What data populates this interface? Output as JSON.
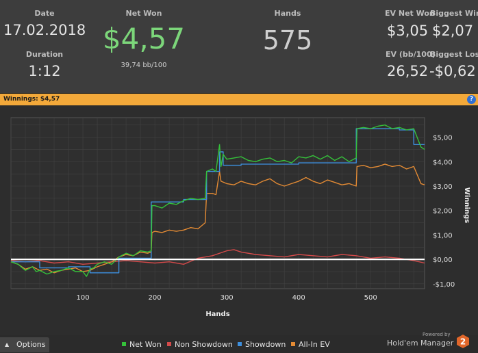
{
  "stats": {
    "date_label": "Date",
    "date_value": "17.02.2018",
    "duration_label": "Duration",
    "duration_value": "1:12",
    "net_won_label": "Net Won",
    "net_won_value": "$4,57",
    "net_won_bb": "39,74 bb/100",
    "hands_label": "Hands",
    "hands_value": "575",
    "ev_net_won_label": "EV Net Won",
    "ev_net_won_value": "$3,05",
    "biggest_win_label": "Biggest Win",
    "biggest_win_value": "$2,07",
    "ev_bb_label": "EV (bb/100)",
    "ev_bb_value": "26,52",
    "biggest_loss_label": "Biggest Loss",
    "biggest_loss_value": "-$0,62"
  },
  "banner": {
    "text": "Winnings:  $4,57",
    "help_icon": "?"
  },
  "colors": {
    "net_won": "#35c23a",
    "non_showdown": "#d44a4a",
    "showdown": "#3d8fde",
    "all_in_ev": "#e48b34",
    "accent_banner": "#f3a93a"
  },
  "chart_data": {
    "type": "line",
    "title": "Winnings:  $4,57",
    "xlabel": "Hands",
    "ylabel": "Winnings",
    "xlim": [
      0,
      575
    ],
    "ylim": [
      -1.2,
      5.8
    ],
    "x_ticks": [
      100,
      200,
      300,
      400,
      500
    ],
    "y_ticks": [
      5,
      4,
      3,
      2,
      1,
      0,
      -1
    ],
    "y_tick_labels": [
      "$5,00",
      "$4,00",
      "$3,00",
      "$2,00",
      "$1,00",
      "$0,00",
      "-$1,00"
    ],
    "series": [
      {
        "name": "Net Won",
        "color": "#35c23a",
        "x": [
          0,
          10,
          20,
          30,
          35,
          40,
          50,
          60,
          70,
          80,
          90,
          100,
          105,
          110,
          115,
          120,
          130,
          140,
          150,
          160,
          170,
          180,
          190,
          195,
          196,
          200,
          210,
          220,
          230,
          240,
          250,
          260,
          270,
          272,
          280,
          285,
          290,
          292,
          295,
          300,
          310,
          320,
          330,
          340,
          350,
          360,
          370,
          380,
          390,
          400,
          410,
          420,
          430,
          440,
          450,
          460,
          470,
          480,
          481,
          490,
          500,
          510,
          520,
          530,
          540,
          550,
          560,
          570,
          575
        ],
        "y": [
          -0.1,
          -0.2,
          -0.45,
          -0.3,
          -0.5,
          -0.45,
          -0.6,
          -0.5,
          -0.45,
          -0.35,
          -0.5,
          -0.5,
          -0.7,
          -0.4,
          -0.35,
          -0.2,
          -0.1,
          -0.2,
          0.1,
          0.25,
          0.15,
          0.35,
          0.3,
          0.35,
          2.2,
          2.2,
          2.1,
          2.3,
          2.25,
          2.4,
          2.5,
          2.45,
          2.5,
          3.6,
          3.7,
          3.6,
          4.7,
          3.8,
          4.3,
          4.1,
          4.15,
          4.2,
          4.05,
          4.0,
          4.1,
          4.15,
          4.0,
          4.05,
          3.95,
          4.2,
          4.15,
          4.25,
          4.1,
          4.25,
          4.05,
          4.2,
          4.0,
          4.15,
          5.35,
          5.4,
          5.35,
          5.45,
          5.5,
          5.35,
          5.4,
          5.3,
          5.35,
          4.6,
          4.5
        ]
      },
      {
        "name": "Non Showdown",
        "color": "#d44a4a",
        "x": [
          0,
          20,
          40,
          60,
          80,
          100,
          120,
          140,
          160,
          180,
          200,
          220,
          240,
          260,
          280,
          300,
          310,
          320,
          340,
          360,
          380,
          400,
          420,
          440,
          460,
          480,
          500,
          520,
          540,
          560,
          575
        ],
        "y": [
          -0.05,
          -0.1,
          -0.05,
          -0.15,
          -0.1,
          -0.2,
          -0.15,
          -0.1,
          -0.05,
          -0.1,
          -0.15,
          -0.1,
          -0.2,
          0.05,
          0.15,
          0.35,
          0.4,
          0.3,
          0.2,
          0.15,
          0.1,
          0.2,
          0.15,
          0.1,
          0.2,
          0.15,
          0.05,
          0.1,
          0.05,
          -0.05,
          -0.15
        ]
      },
      {
        "name": "Showdown",
        "color": "#3d8fde",
        "x": [
          0,
          40,
          40,
          80,
          80,
          110,
          110,
          150,
          150,
          195,
          195,
          240,
          240,
          272,
          272,
          290,
          290,
          295,
          295,
          320,
          320,
          400,
          400,
          480,
          480,
          540,
          540,
          560,
          560,
          575
        ],
        "y": [
          -0.1,
          -0.1,
          -0.35,
          -0.35,
          -0.3,
          -0.3,
          -0.55,
          -0.55,
          0.05,
          0.05,
          2.35,
          2.35,
          2.45,
          2.45,
          3.6,
          3.6,
          4.4,
          4.4,
          3.85,
          3.85,
          3.9,
          3.9,
          3.95,
          3.95,
          5.35,
          5.35,
          5.3,
          5.3,
          4.7,
          4.7
        ]
      },
      {
        "name": "All-In EV",
        "color": "#e48b34",
        "x": [
          0,
          10,
          20,
          30,
          40,
          50,
          60,
          70,
          80,
          90,
          100,
          110,
          120,
          130,
          140,
          150,
          160,
          170,
          180,
          190,
          195,
          196,
          200,
          210,
          220,
          230,
          240,
          250,
          260,
          270,
          272,
          280,
          285,
          290,
          292,
          300,
          310,
          320,
          330,
          340,
          350,
          360,
          370,
          380,
          390,
          400,
          410,
          420,
          430,
          440,
          450,
          460,
          470,
          480,
          481,
          490,
          500,
          510,
          520,
          530,
          540,
          550,
          560,
          570,
          575
        ],
        "y": [
          -0.1,
          -0.2,
          -0.4,
          -0.3,
          -0.45,
          -0.4,
          -0.55,
          -0.45,
          -0.4,
          -0.35,
          -0.5,
          -0.45,
          -0.3,
          -0.2,
          -0.1,
          0.1,
          0.2,
          0.15,
          0.3,
          0.25,
          0.3,
          1.1,
          1.15,
          1.1,
          1.2,
          1.15,
          1.2,
          1.3,
          1.25,
          1.5,
          2.7,
          2.7,
          2.65,
          3.6,
          3.2,
          3.1,
          3.05,
          3.2,
          3.1,
          3.05,
          3.2,
          3.3,
          3.1,
          3.0,
          3.1,
          3.2,
          3.35,
          3.2,
          3.1,
          3.25,
          3.15,
          3.05,
          3.1,
          3.0,
          3.8,
          3.85,
          3.75,
          3.8,
          3.9,
          3.8,
          3.85,
          3.7,
          3.8,
          3.1,
          3.05
        ]
      }
    ],
    "legend_position": "bottom-center",
    "grid": true
  },
  "legend": [
    {
      "label": "Net Won",
      "color": "#35c23a"
    },
    {
      "label": "Non Showdown",
      "color": "#d44a4a"
    },
    {
      "label": "Showdown",
      "color": "#3d8fde"
    },
    {
      "label": "All-In EV",
      "color": "#e48b34"
    }
  ],
  "footer": {
    "options_label": "Options",
    "options_icon": "triangle-up-icon",
    "powered_by": "Powered by",
    "brand": "Hold'em Manager",
    "brand_badge": "2"
  }
}
